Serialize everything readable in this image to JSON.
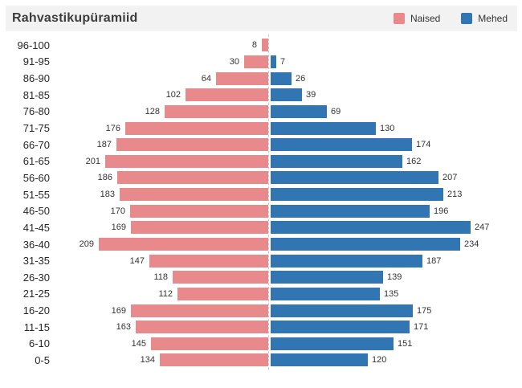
{
  "header": {
    "title": "Rahvastikupüramiid",
    "legend": [
      {
        "label": "Naised",
        "color": "#e8898b"
      },
      {
        "label": "Mehed",
        "color": "#3176b2"
      }
    ]
  },
  "chart_data": {
    "type": "bar",
    "subtype": "population-pyramid",
    "title": "Rahvastikupüramiid",
    "xlabel": "",
    "ylabel": "",
    "legend_position": "top-right",
    "grid": "center-dashed-axis-only",
    "categories": [
      "96-100",
      "91-95",
      "86-90",
      "81-85",
      "76-80",
      "71-75",
      "66-70",
      "61-65",
      "56-60",
      "51-55",
      "46-50",
      "41-45",
      "36-40",
      "31-35",
      "26-30",
      "21-25",
      "16-20",
      "11-15",
      "6-10",
      "0-5"
    ],
    "series": [
      {
        "name": "Naised",
        "side": "left",
        "color": "#e8898b",
        "values": [
          8,
          30,
          64,
          102,
          128,
          176,
          187,
          201,
          186,
          183,
          170,
          169,
          209,
          147,
          118,
          112,
          169,
          163,
          145,
          134
        ]
      },
      {
        "name": "Mehed",
        "side": "right",
        "color": "#3176b2",
        "values": [
          null,
          7,
          26,
          39,
          69,
          130,
          174,
          162,
          207,
          213,
          196,
          247,
          234,
          187,
          139,
          135,
          175,
          171,
          151,
          120
        ]
      }
    ]
  }
}
